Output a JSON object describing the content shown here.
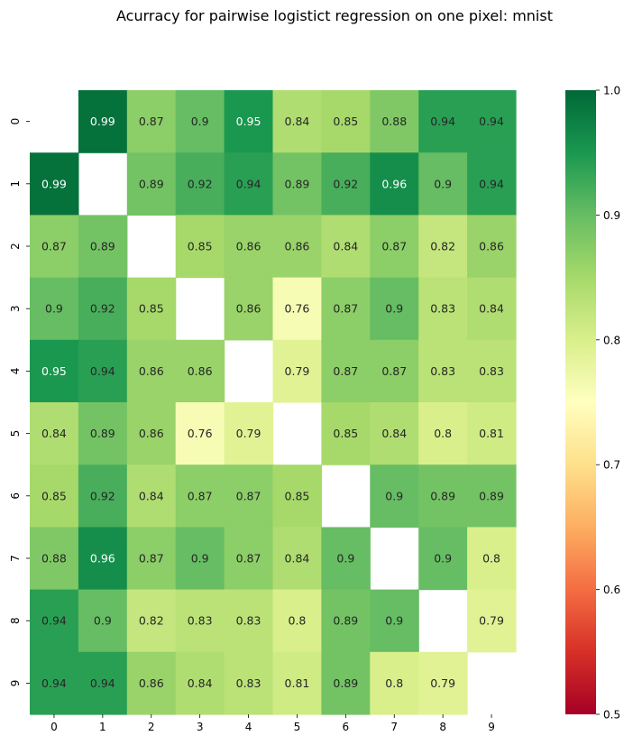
{
  "chart_data": {
    "type": "heatmap",
    "title": "Acurracy for pairwise logistict regression on one pixel: mnist",
    "x_categories": [
      "0",
      "1",
      "2",
      "3",
      "4",
      "5",
      "6",
      "7",
      "8",
      "9"
    ],
    "y_categories": [
      "0",
      "1",
      "2",
      "3",
      "4",
      "5",
      "6",
      "7",
      "8",
      "9"
    ],
    "values": [
      [
        null,
        0.99,
        0.87,
        0.9,
        0.95,
        0.84,
        0.85,
        0.88,
        0.94,
        0.94
      ],
      [
        0.99,
        null,
        0.89,
        0.92,
        0.94,
        0.89,
        0.92,
        0.96,
        0.9,
        0.94
      ],
      [
        0.87,
        0.89,
        null,
        0.85,
        0.86,
        0.86,
        0.84,
        0.87,
        0.82,
        0.86
      ],
      [
        0.9,
        0.92,
        0.85,
        null,
        0.86,
        0.76,
        0.87,
        0.9,
        0.83,
        0.84
      ],
      [
        0.95,
        0.94,
        0.86,
        0.86,
        null,
        0.79,
        0.87,
        0.87,
        0.83,
        0.83
      ],
      [
        0.84,
        0.89,
        0.86,
        0.76,
        0.79,
        null,
        0.85,
        0.84,
        0.8,
        0.81
      ],
      [
        0.85,
        0.92,
        0.84,
        0.87,
        0.87,
        0.85,
        null,
        0.9,
        0.89,
        0.89
      ],
      [
        0.88,
        0.96,
        0.87,
        0.9,
        0.87,
        0.84,
        0.9,
        null,
        0.9,
        0.8
      ],
      [
        0.94,
        0.9,
        0.82,
        0.83,
        0.83,
        0.8,
        0.89,
        0.9,
        null,
        0.79
      ],
      [
        0.94,
        0.94,
        0.86,
        0.84,
        0.83,
        0.81,
        0.89,
        0.8,
        0.79,
        null
      ]
    ],
    "color_scale": {
      "name": "RdYlGn",
      "range": [
        0.5,
        1.0
      ]
    },
    "colorbar_ticks": [
      "0.5",
      "0.6",
      "0.7",
      "0.8",
      "0.9",
      "1.0"
    ],
    "grid": false,
    "legend": "colorbar-right"
  }
}
